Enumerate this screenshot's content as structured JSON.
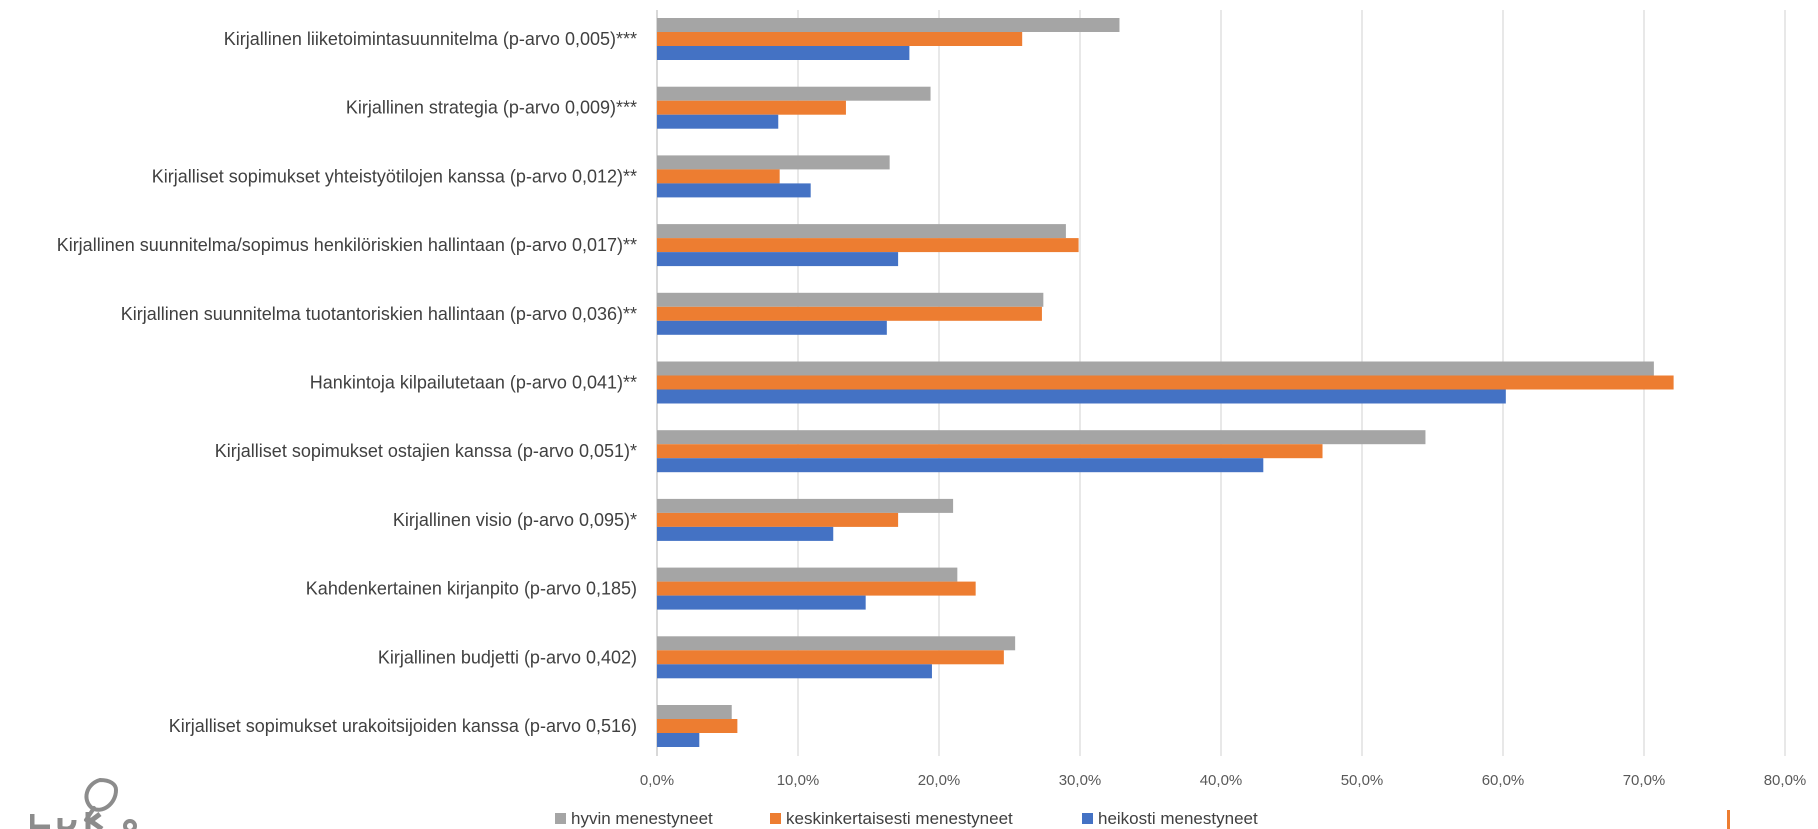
{
  "colors": {
    "hyvin": "#A5A5A5",
    "keskinkertaisesti": "#ED7D31",
    "heikosti": "#4472C4",
    "grid": "#D9D9D9",
    "axis": "#BFBFBF",
    "text": "#404040"
  },
  "logo": {
    "icon": "leaf-logo-icon"
  },
  "chart_data": {
    "type": "bar",
    "orientation": "horizontal",
    "title": "",
    "xlabel": "",
    "ylabel": "",
    "xlim": [
      0,
      80
    ],
    "x_ticks": [
      "0,0%",
      "10,0%",
      "20,0%",
      "30,0%",
      "40,0%",
      "50,0%",
      "60,0%",
      "70,0%",
      "80,0%"
    ],
    "grid": true,
    "legend_position": "bottom",
    "categories": [
      "Kirjallinen liiketoimintasuunnitelma (p-arvo 0,005)***",
      "Kirjallinen strategia (p-arvo 0,009)***",
      "Kirjalliset sopimukset yhteistyötilojen kanssa (p-arvo 0,012)**",
      "Kirjallinen suunnitelma/sopimus henkilöriskien hallintaan (p-arvo 0,017)**",
      "Kirjallinen suunnitelma tuotantoriskien hallintaan (p-arvo 0,036)**",
      "Hankintoja kilpailutetaan (p-arvo 0,041)**",
      "Kirjalliset sopimukset ostajien kanssa (p-arvo 0,051)*",
      "Kirjallinen visio (p-arvo 0,095)*",
      "Kahdenkertainen kirjanpito (p-arvo 0,185)",
      "Kirjallinen budjetti (p-arvo 0,402)",
      "Kirjalliset sopimukset urakoitsijoiden kanssa (p-arvo 0,516)"
    ],
    "series": [
      {
        "name": "hyvin menestyneet",
        "color": "#A5A5A5",
        "values": [
          32.8,
          19.4,
          16.5,
          29.0,
          27.4,
          70.7,
          54.5,
          21.0,
          21.3,
          25.4,
          5.3
        ]
      },
      {
        "name": "keskinkertaisesti menestyneet",
        "color": "#ED7D31",
        "values": [
          25.9,
          13.4,
          8.7,
          29.9,
          27.3,
          72.1,
          47.2,
          17.1,
          22.6,
          24.6,
          5.7
        ]
      },
      {
        "name": "heikosti menestyneet",
        "color": "#4472C4",
        "values": [
          17.9,
          8.6,
          10.9,
          17.1,
          16.3,
          60.2,
          43.0,
          12.5,
          14.8,
          19.5,
          3.0
        ]
      }
    ]
  }
}
